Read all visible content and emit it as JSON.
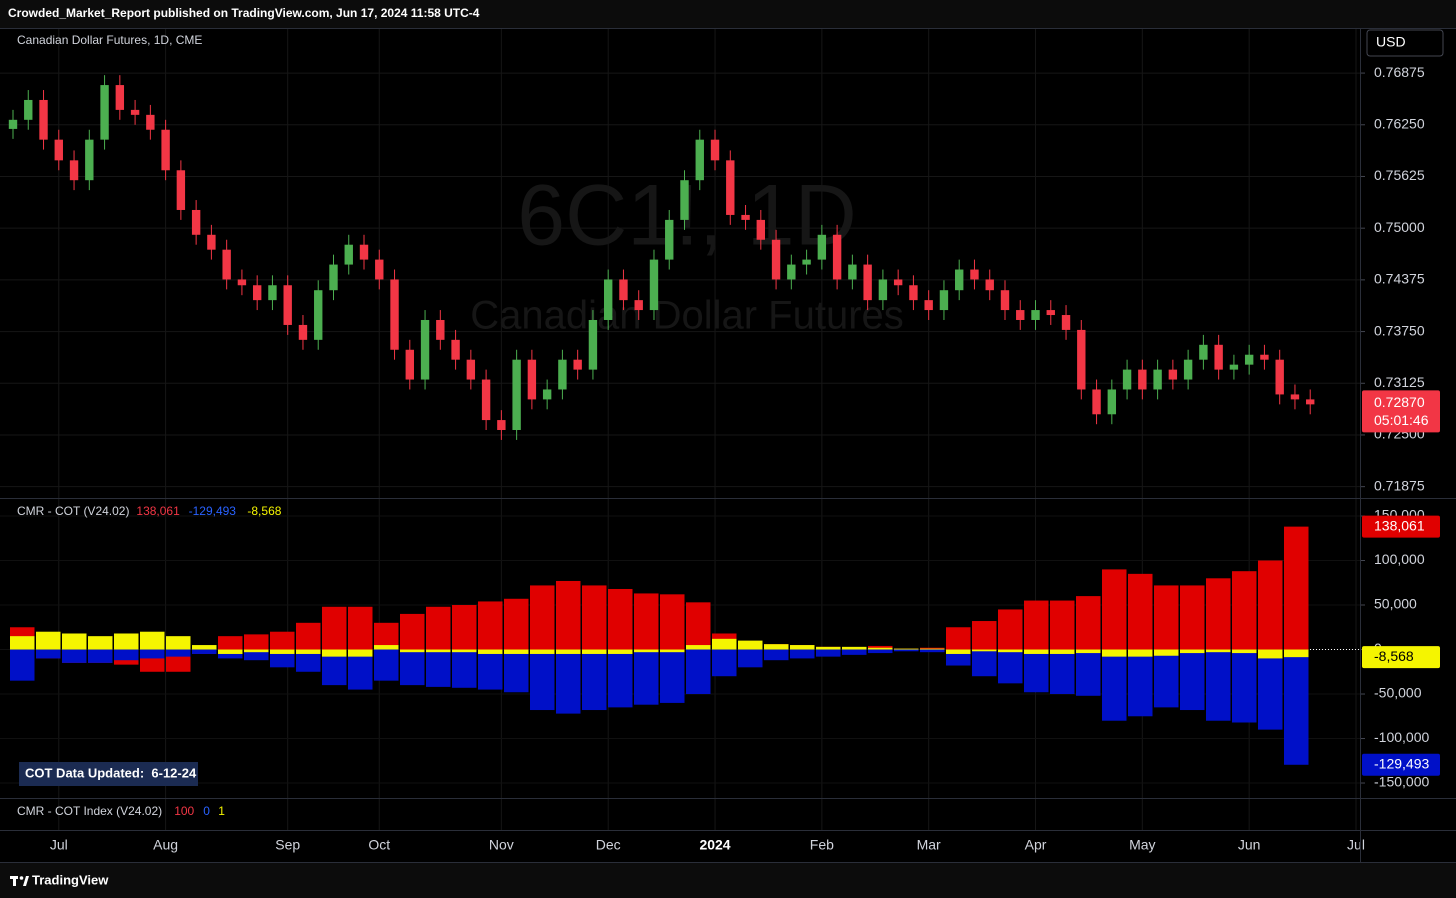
{
  "header": {
    "text": "Crowded_Market_Report published on TradingView.com, Jun 17, 2024 11:58 UTC-4"
  },
  "chart_data": [
    {
      "type": "candlestick",
      "title": "Canadian Dollar Futures, 1D, CME",
      "watermark": "6C1!, 1D",
      "watermark_subtitle": "Canadian Dollar Futures",
      "currency": "USD",
      "up_color": "#4caf50",
      "down_color": "#f23645",
      "grid": true,
      "categories": [
        null,
        null,
        null,
        "Jul",
        null,
        null,
        null,
        null,
        null,
        null,
        "Aug",
        null,
        null,
        null,
        null,
        null,
        null,
        null,
        "Sep",
        null,
        null,
        null,
        null,
        null,
        "Oct",
        null,
        null,
        null,
        null,
        null,
        null,
        null,
        "Nov",
        null,
        null,
        null,
        null,
        null,
        null,
        "Dec",
        null,
        null,
        null,
        null,
        null,
        null,
        "2024",
        null,
        null,
        null,
        null,
        null,
        null,
        "Feb",
        null,
        null,
        null,
        null,
        null,
        null,
        "Mar",
        null,
        null,
        null,
        null,
        null,
        null,
        "Apr",
        null,
        null,
        null,
        null,
        null,
        null,
        "May",
        null,
        null,
        null,
        null,
        null,
        null,
        "Jun",
        null,
        null,
        null,
        null,
        null,
        null,
        "Jul"
      ],
      "open": [
        0.762,
        0.7631,
        0.7655,
        0.7607,
        0.7582,
        0.7558,
        0.7607,
        0.7673,
        0.7643,
        0.7637,
        0.7619,
        0.757,
        0.7522,
        0.7492,
        0.7474,
        0.7438,
        0.7431,
        0.7413,
        0.7431,
        0.7383,
        0.7365,
        0.7425,
        0.7456,
        0.748,
        0.7462,
        0.7438,
        0.7353,
        0.7317,
        0.7389,
        0.7365,
        0.7341,
        0.7317,
        0.7268,
        0.7256,
        0.7341,
        0.7293,
        0.7305,
        0.7341,
        0.7329,
        0.7389,
        0.7438,
        0.7413,
        0.7401,
        0.7462,
        0.751,
        0.7558,
        0.7607,
        0.7582,
        0.7516,
        0.751,
        0.7486,
        0.7438,
        0.7456,
        0.7462,
        0.7492,
        0.7438,
        0.7456,
        0.7413,
        0.7438,
        0.7431,
        0.7413,
        0.7401,
        0.7425,
        0.745,
        0.7438,
        0.7425,
        0.7401,
        0.7389,
        0.7401,
        0.7395,
        0.7377,
        0.7305,
        0.7275,
        0.7305,
        0.7329,
        0.7305,
        0.7329,
        0.7317,
        0.7341,
        0.7359,
        0.7329,
        0.7335,
        0.7347,
        0.7341,
        0.7299,
        0.7293,
        null,
        null,
        null
      ],
      "high": [
        0.7643,
        0.7667,
        0.7667,
        0.7619,
        0.7594,
        0.7619,
        0.7685,
        0.7685,
        0.7655,
        0.7649,
        0.7631,
        0.7582,
        0.7534,
        0.7504,
        0.7486,
        0.745,
        0.7443,
        0.7443,
        0.7443,
        0.7395,
        0.7437,
        0.7468,
        0.7492,
        0.7492,
        0.7474,
        0.745,
        0.7365,
        0.7401,
        0.7401,
        0.7377,
        0.7353,
        0.7329,
        0.728,
        0.7353,
        0.7353,
        0.7317,
        0.7353,
        0.7353,
        0.7401,
        0.745,
        0.745,
        0.7425,
        0.7474,
        0.7522,
        0.757,
        0.7619,
        0.7619,
        0.7594,
        0.7528,
        0.7522,
        0.7498,
        0.7468,
        0.7474,
        0.7504,
        0.7504,
        0.7468,
        0.7468,
        0.745,
        0.745,
        0.7443,
        0.7425,
        0.7437,
        0.7462,
        0.7462,
        0.745,
        0.7437,
        0.7413,
        0.7413,
        0.7413,
        0.7407,
        0.7389,
        0.7317,
        0.7317,
        0.7341,
        0.7341,
        0.7341,
        0.7341,
        0.7353,
        0.7371,
        0.7371,
        0.7347,
        0.7359,
        0.7359,
        0.7353,
        0.7311,
        0.7305,
        null,
        null,
        null
      ],
      "low": [
        0.7608,
        0.7619,
        0.7595,
        0.757,
        0.7546,
        0.7546,
        0.7595,
        0.7631,
        0.7625,
        0.7607,
        0.7558,
        0.751,
        0.748,
        0.7462,
        0.7426,
        0.7419,
        0.7401,
        0.7401,
        0.7371,
        0.7353,
        0.7353,
        0.7413,
        0.7444,
        0.745,
        0.7426,
        0.7341,
        0.7305,
        0.7305,
        0.7353,
        0.7329,
        0.7305,
        0.7256,
        0.7244,
        0.7244,
        0.7281,
        0.7281,
        0.7293,
        0.7317,
        0.7317,
        0.7377,
        0.7401,
        0.7389,
        0.7389,
        0.745,
        0.7498,
        0.7546,
        0.757,
        0.7504,
        0.7498,
        0.7474,
        0.7426,
        0.7426,
        0.7444,
        0.745,
        0.7426,
        0.7426,
        0.7401,
        0.7401,
        0.7419,
        0.7401,
        0.7389,
        0.7389,
        0.7413,
        0.7426,
        0.7413,
        0.7389,
        0.7377,
        0.7377,
        0.7383,
        0.7365,
        0.7293,
        0.7263,
        0.7263,
        0.7293,
        0.7293,
        0.7293,
        0.7305,
        0.7305,
        0.7329,
        0.7317,
        0.7317,
        0.7323,
        0.7329,
        0.7287,
        0.7281,
        0.7275,
        null,
        null,
        null
      ],
      "close": [
        0.7631,
        0.7655,
        0.7607,
        0.7582,
        0.7558,
        0.7607,
        0.7673,
        0.7643,
        0.7637,
        0.7619,
        0.757,
        0.7522,
        0.7492,
        0.7474,
        0.7438,
        0.7431,
        0.7413,
        0.7431,
        0.7383,
        0.7365,
        0.7425,
        0.7456,
        0.748,
        0.7462,
        0.7438,
        0.7353,
        0.7317,
        0.7389,
        0.7365,
        0.7341,
        0.7317,
        0.7268,
        0.7256,
        0.7341,
        0.7293,
        0.7305,
        0.7341,
        0.7329,
        0.7389,
        0.7438,
        0.7413,
        0.7401,
        0.7462,
        0.751,
        0.7558,
        0.7607,
        0.7582,
        0.7516,
        0.751,
        0.7486,
        0.7438,
        0.7456,
        0.7462,
        0.7492,
        0.7438,
        0.7456,
        0.7413,
        0.7438,
        0.7431,
        0.7413,
        0.7401,
        0.7425,
        0.745,
        0.7438,
        0.7425,
        0.7401,
        0.7389,
        0.7401,
        0.7395,
        0.7377,
        0.7305,
        0.7275,
        0.7305,
        0.7329,
        0.7305,
        0.7329,
        0.7317,
        0.7341,
        0.7359,
        0.7329,
        0.7335,
        0.7347,
        0.7341,
        0.7299,
        0.7293,
        0.7287,
        null,
        null,
        null
      ],
      "ylim": [
        0.7175,
        0.7742
      ],
      "yticks": [
        0.71875,
        {
          "value": 0.725,
          "label": "0.72500"
        },
        0.73125,
        {
          "value": 0.7375,
          "label": "0.73750"
        },
        0.74375,
        {
          "value": 0.75,
          "label": "0.75000"
        },
        0.75625,
        {
          "value": 0.7625,
          "label": "0.76250"
        },
        0.76875
      ],
      "last_price": {
        "value": 0.7287,
        "label": "0.72870"
      },
      "countdown": "05:01:46"
    },
    {
      "type": "bar",
      "title": "CMR - COT (V24.02)",
      "note": "COT Data Updated:  6-12-24",
      "series": [
        {
          "color": "#e00000",
          "values": [
            25000,
            -10000,
            -15000,
            -15000,
            -17000,
            -25000,
            -25000,
            -5000,
            15000,
            17000,
            20000,
            30000,
            48000,
            48000,
            30000,
            40000,
            48000,
            50000,
            54000,
            57000,
            72000,
            77000,
            72000,
            68000,
            63000,
            62000,
            53000,
            18000,
            8000,
            6000,
            5000,
            3000,
            2000,
            4000,
            1000,
            2000,
            25000,
            32000,
            45000,
            55000,
            55000,
            60000,
            90000,
            85000,
            72000,
            72000,
            80000,
            88000,
            100000,
            138061
          ],
          "value_labels": [
            null,
            null,
            null,
            null,
            null,
            null,
            null,
            null,
            null,
            null,
            null,
            null,
            null,
            null,
            null,
            null,
            null,
            null,
            null,
            null,
            null,
            null,
            null,
            null,
            null,
            null,
            null,
            null,
            null,
            null,
            null,
            null,
            null,
            null,
            null,
            null,
            null,
            null,
            null,
            null,
            null,
            null,
            null,
            null,
            null,
            null,
            null,
            null,
            null,
            "138,061"
          ]
        },
        {
          "color": "#0010c8",
          "values": [
            -35000,
            -10000,
            -15000,
            -15000,
            -12000,
            -10000,
            -8000,
            -5000,
            -10000,
            -12000,
            -20000,
            -25000,
            -40000,
            -45000,
            -35000,
            -40000,
            -42000,
            -43000,
            -45000,
            -48000,
            -68000,
            -72000,
            -68000,
            -65000,
            -62000,
            -60000,
            -50000,
            -30000,
            -20000,
            -12000,
            -10000,
            -8000,
            -6000,
            -4000,
            -2000,
            -3000,
            -18000,
            -30000,
            -38000,
            -48000,
            -50000,
            -52000,
            -80000,
            -75000,
            -65000,
            -68000,
            -80000,
            -82000,
            -90000,
            -129493
          ],
          "value_labels": [
            null,
            null,
            null,
            null,
            null,
            null,
            null,
            null,
            null,
            null,
            null,
            null,
            null,
            null,
            null,
            null,
            null,
            null,
            null,
            null,
            null,
            null,
            null,
            null,
            null,
            null,
            null,
            null,
            null,
            null,
            null,
            null,
            null,
            null,
            null,
            null,
            null,
            null,
            null,
            null,
            null,
            null,
            null,
            null,
            null,
            null,
            null,
            null,
            null,
            "-129,493"
          ]
        },
        {
          "color": "#f5f500",
          "values": [
            15000,
            20000,
            18000,
            15000,
            18000,
            20000,
            15000,
            5000,
            -5000,
            -3000,
            -5000,
            -5000,
            -8000,
            -8000,
            5000,
            -3000,
            -3000,
            -3000,
            -5000,
            -5000,
            -5000,
            -5000,
            -5000,
            -5000,
            -3000,
            -3000,
            5000,
            12000,
            10000,
            6000,
            5000,
            3000,
            3000,
            2000,
            1000,
            1000,
            -5000,
            -2000,
            -3000,
            -5000,
            -5000,
            -4000,
            -8000,
            -8000,
            -7000,
            -4000,
            -3000,
            -4000,
            -10000,
            -8568
          ],
          "value_labels": [
            null,
            null,
            null,
            null,
            null,
            null,
            null,
            null,
            null,
            null,
            null,
            null,
            null,
            null,
            null,
            null,
            null,
            null,
            null,
            null,
            null,
            null,
            null,
            null,
            null,
            null,
            null,
            null,
            null,
            null,
            null,
            null,
            null,
            null,
            null,
            null,
            null,
            null,
            null,
            null,
            null,
            null,
            null,
            null,
            null,
            null,
            null,
            null,
            null,
            "-8,568"
          ]
        }
      ],
      "ylim": [
        -165700,
        169100
      ],
      "yticks": [
        {
          "value": -150000,
          "label": "-150,000"
        },
        {
          "value": -100000,
          "label": "-100,000"
        },
        {
          "value": -50000,
          "label": "-50,000"
        },
        0,
        {
          "value": 50000,
          "label": "50,000"
        },
        {
          "value": 100000,
          "label": "100,000"
        },
        {
          "value": 150000,
          "label": "150,000"
        }
      ]
    },
    {
      "type": "indicator",
      "title": "CMR - COT Index (V24.02)",
      "values": [
        "100",
        "0",
        "1"
      ],
      "colors": [
        "#f23645",
        "#2962ff",
        "#f5f500"
      ]
    }
  ],
  "footer": {
    "brand": "TradingView"
  }
}
